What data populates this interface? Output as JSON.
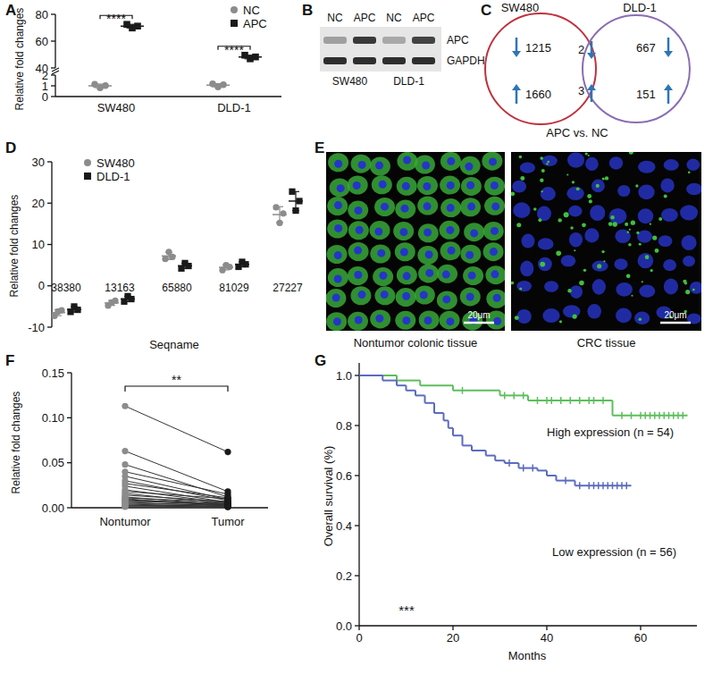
{
  "chart_data": [
    {
      "title": "A",
      "type": "scatter",
      "categories": [
        "SW480",
        "DLD-1"
      ],
      "y_label": "Relative fold changes",
      "series": [
        {
          "name": "NC",
          "color": "#8c8c8c",
          "marker": "circle",
          "values": [
            [
              1.15,
              0.82,
              1.02
            ],
            [
              1.18,
              0.9,
              1.1
            ]
          ]
        },
        {
          "name": "APC",
          "color": "#1a1a1a",
          "marker": "square",
          "axis": "y2",
          "values": [
            [
              72.5,
              69.8,
              71.2
            ],
            [
              49.5,
              46.8,
              48.2
            ]
          ]
        }
      ],
      "ylim": [
        0,
        2
      ],
      "yticks": [
        0,
        1,
        2
      ],
      "y2lim": [
        40,
        80
      ],
      "y2ticks": [
        40,
        60,
        80
      ],
      "annotations": [
        "****",
        "****"
      ],
      "legend": "top-right"
    },
    {
      "title": "B",
      "type": "blot",
      "lanes": [
        "NC",
        "APC",
        "NC",
        "APC"
      ],
      "groups": [
        "SW480",
        "DLD-1"
      ],
      "rows": [
        {
          "name": "APC",
          "values": [
            0.35,
            0.85,
            0.3,
            0.8
          ]
        },
        {
          "name": "GAPDH",
          "values": [
            0.9,
            0.9,
            0.9,
            0.9
          ]
        }
      ]
    },
    {
      "title": "C",
      "type": "venn",
      "label": "APC vs. NC",
      "sets": [
        {
          "name": "SW480",
          "color": "#c0313e",
          "down": 1215,
          "up": 1660
        },
        {
          "name": "DLD-1",
          "color": "#8a6db3",
          "down": 667,
          "up": 151
        }
      ],
      "overlap": {
        "down": 2,
        "up": 3
      },
      "color": "#2e75b6"
    },
    {
      "title": "D",
      "type": "scatter",
      "categories": [
        "38380",
        "13163",
        "65880",
        "81029",
        "27227"
      ],
      "x_label": "Seqname",
      "y_label": "Relative fold changes",
      "ylim": [
        -10,
        30
      ],
      "yticks": [
        -10,
        0,
        10,
        20,
        30
      ],
      "legend": "top-left",
      "series": [
        {
          "name": "SW480",
          "color": "#8c8c8c",
          "marker": "circle",
          "values": [
            [
              -7.3,
              -6.2,
              -5.9
            ],
            [
              -4.8,
              -4.0,
              -3.6
            ],
            [
              6.5,
              8.2,
              7.0
            ],
            [
              3.8,
              5.0,
              4.6
            ],
            [
              19.0,
              15.2,
              17.5
            ]
          ]
        },
        {
          "name": "DLD-1",
          "color": "#1a1a1a",
          "marker": "square",
          "values": [
            [
              -6.3,
              -5.0,
              -5.8
            ],
            [
              -3.8,
              -2.5,
              -3.2
            ],
            [
              4.2,
              5.5,
              4.8
            ],
            [
              4.6,
              5.8,
              5.2
            ],
            [
              22.8,
              18.2,
              20.5
            ]
          ]
        }
      ]
    },
    {
      "title": "E",
      "type": "image",
      "images": [
        "Nontumor colonic tissue",
        "CRC tissue"
      ],
      "scale_bar": "20μm"
    },
    {
      "title": "F",
      "type": "paired",
      "categories": [
        "Nontumor",
        "Tumor"
      ],
      "y_label": "Relative fold changes",
      "ylim": [
        0,
        0.15
      ],
      "yticks": [
        {
          "value": 0,
          "label": "0.00"
        },
        {
          "value": 0.05,
          "label": "0.05"
        },
        {
          "value": 0.1,
          "label": "0.10"
        },
        {
          "value": 0.15,
          "label": "0.15"
        }
      ],
      "colors": [
        "#8c8c8c",
        "#1a1a1a"
      ],
      "annotations": [
        "**"
      ],
      "values": [
        [
          0.113,
          0.062
        ],
        [
          0.063,
          0.018
        ],
        [
          0.048,
          0.012
        ],
        [
          0.04,
          0.015
        ],
        [
          0.035,
          0.009
        ],
        [
          0.03,
          0.008
        ],
        [
          0.027,
          0.011
        ],
        [
          0.024,
          0.006
        ],
        [
          0.02,
          0.005
        ],
        [
          0.018,
          0.01
        ],
        [
          0.016,
          0.004
        ],
        [
          0.014,
          0.007
        ],
        [
          0.012,
          0.003
        ],
        [
          0.011,
          0.006
        ],
        [
          0.01,
          0.002
        ],
        [
          0.009,
          0.004
        ],
        [
          0.008,
          0.003
        ],
        [
          0.007,
          0.005
        ],
        [
          0.006,
          0.002
        ],
        [
          0.005,
          0.003
        ],
        [
          0.004,
          0.001
        ],
        [
          0.003,
          0.002
        ],
        [
          0.002,
          0.001
        ],
        [
          0.002,
          0.004
        ],
        [
          0.001,
          0.001
        ]
      ]
    },
    {
      "title": "G",
      "type": "survival",
      "x_label": "Months",
      "y_label": "Overall survival (%)",
      "xlim": [
        0,
        72
      ],
      "xticks": [
        0,
        20,
        40,
        60
      ],
      "ylim": [
        0,
        1.05
      ],
      "yticks": [
        {
          "value": 0,
          "label": "0.0"
        },
        {
          "value": 0.2,
          "label": "0.2"
        },
        {
          "value": 0.4,
          "label": "0.4"
        },
        {
          "value": 0.6,
          "label": "0.6"
        },
        {
          "value": 0.8,
          "label": "0.8"
        },
        {
          "value": 1,
          "label": "1.0"
        }
      ],
      "annotations": [
        "***"
      ],
      "series": [
        {
          "name": "High expression (n = 54)",
          "color": "#5cbf5c",
          "x": [
            0,
            8,
            13,
            20,
            30,
            36,
            54,
            70
          ],
          "values": [
            1,
            0.98,
            0.96,
            0.94,
            0.92,
            0.9,
            0.84,
            0.84
          ],
          "censored": [
            22,
            31,
            33,
            35,
            38,
            40,
            41,
            43,
            45,
            47,
            49,
            50,
            52,
            56,
            58,
            60,
            61,
            62,
            63,
            64,
            65,
            66,
            67,
            68,
            69
          ]
        },
        {
          "name": "Low expression (n = 56)",
          "color": "#5b6bbf",
          "x": [
            0,
            5,
            8,
            10,
            12,
            14,
            16,
            18,
            19,
            20,
            22,
            24,
            27,
            29,
            31,
            34,
            38,
            40,
            42,
            46,
            58
          ],
          "values": [
            1,
            0.98,
            0.96,
            0.94,
            0.92,
            0.89,
            0.85,
            0.82,
            0.79,
            0.76,
            0.72,
            0.7,
            0.68,
            0.66,
            0.65,
            0.63,
            0.62,
            0.6,
            0.58,
            0.56,
            0.56
          ],
          "censored": [
            32,
            35,
            37,
            44,
            47,
            49,
            50,
            51,
            52,
            53,
            54,
            55,
            56,
            57
          ]
        }
      ]
    }
  ]
}
